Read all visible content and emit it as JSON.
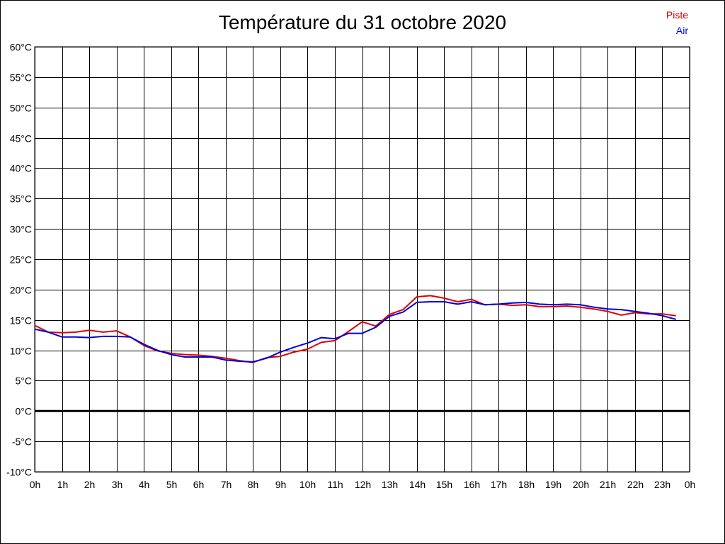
{
  "chart_data": {
    "type": "line",
    "title": "Température du 31 octobre 2020",
    "legend_position": "top-right",
    "grid": true,
    "xlim": [
      0,
      24
    ],
    "ylim": [
      -10,
      60
    ],
    "x_tick_labels": [
      "0h",
      "1h",
      "2h",
      "3h",
      "4h",
      "5h",
      "6h",
      "7h",
      "8h",
      "9h",
      "10h",
      "11h",
      "12h",
      "13h",
      "14h",
      "15h",
      "16h",
      "17h",
      "18h",
      "19h",
      "20h",
      "21h",
      "22h",
      "23h",
      "0h"
    ],
    "y_tick_labels": [
      "60°C",
      "55°C",
      "50°C",
      "45°C",
      "40°C",
      "35°C",
      "30°C",
      "25°C",
      "20°C",
      "15°C",
      "10°C",
      "5°C",
      "0°C",
      "-5°C",
      "-10°C"
    ],
    "y_ticks": [
      60,
      55,
      50,
      45,
      40,
      35,
      30,
      25,
      20,
      15,
      10,
      5,
      0,
      -5,
      -10
    ],
    "x": [
      0,
      0.5,
      1,
      1.5,
      2,
      2.5,
      3,
      3.5,
      4,
      4.5,
      5,
      5.5,
      6,
      6.5,
      7,
      7.5,
      8,
      8.5,
      9,
      9.5,
      10,
      10.5,
      11,
      11.5,
      12,
      12.5,
      13,
      13.5,
      14,
      14.5,
      15,
      15.5,
      16,
      16.5,
      17,
      17.5,
      18,
      18.5,
      19,
      19.5,
      20,
      20.5,
      21,
      21.5,
      22,
      22.5,
      23,
      23.5
    ],
    "series": [
      {
        "name": "Piste",
        "color": "#dd0000",
        "values": [
          14.1,
          13.0,
          12.9,
          13.0,
          13.3,
          13.0,
          13.2,
          12.2,
          10.8,
          9.9,
          9.5,
          9.3,
          9.2,
          9.0,
          8.7,
          8.3,
          8.0,
          8.8,
          9.0,
          9.7,
          10.2,
          11.3,
          11.6,
          13.1,
          14.7,
          14.0,
          15.9,
          16.7,
          18.8,
          19.0,
          18.6,
          18.0,
          18.4,
          17.5,
          17.6,
          17.4,
          17.5,
          17.2,
          17.2,
          17.3,
          17.1,
          16.8,
          16.4,
          15.8,
          16.2,
          16.0,
          16.0,
          15.7
        ]
      },
      {
        "name": "Air",
        "color": "#0000dd",
        "values": [
          13.5,
          13.0,
          12.2,
          12.2,
          12.1,
          12.3,
          12.3,
          12.2,
          11.0,
          10.0,
          9.3,
          8.9,
          8.9,
          8.9,
          8.4,
          8.2,
          8.1,
          8.7,
          9.7,
          10.5,
          11.2,
          12.1,
          11.9,
          12.8,
          12.8,
          13.8,
          15.6,
          16.3,
          17.9,
          18.0,
          18.0,
          17.6,
          18.0,
          17.5,
          17.6,
          17.8,
          17.9,
          17.6,
          17.5,
          17.6,
          17.5,
          17.1,
          16.8,
          16.7,
          16.4,
          16.1,
          15.7,
          15.1
        ]
      }
    ],
    "baseline_y": 0
  },
  "style": {
    "background": "#ffffff",
    "grid_color": "#000000",
    "baseline_color": "#000000"
  }
}
